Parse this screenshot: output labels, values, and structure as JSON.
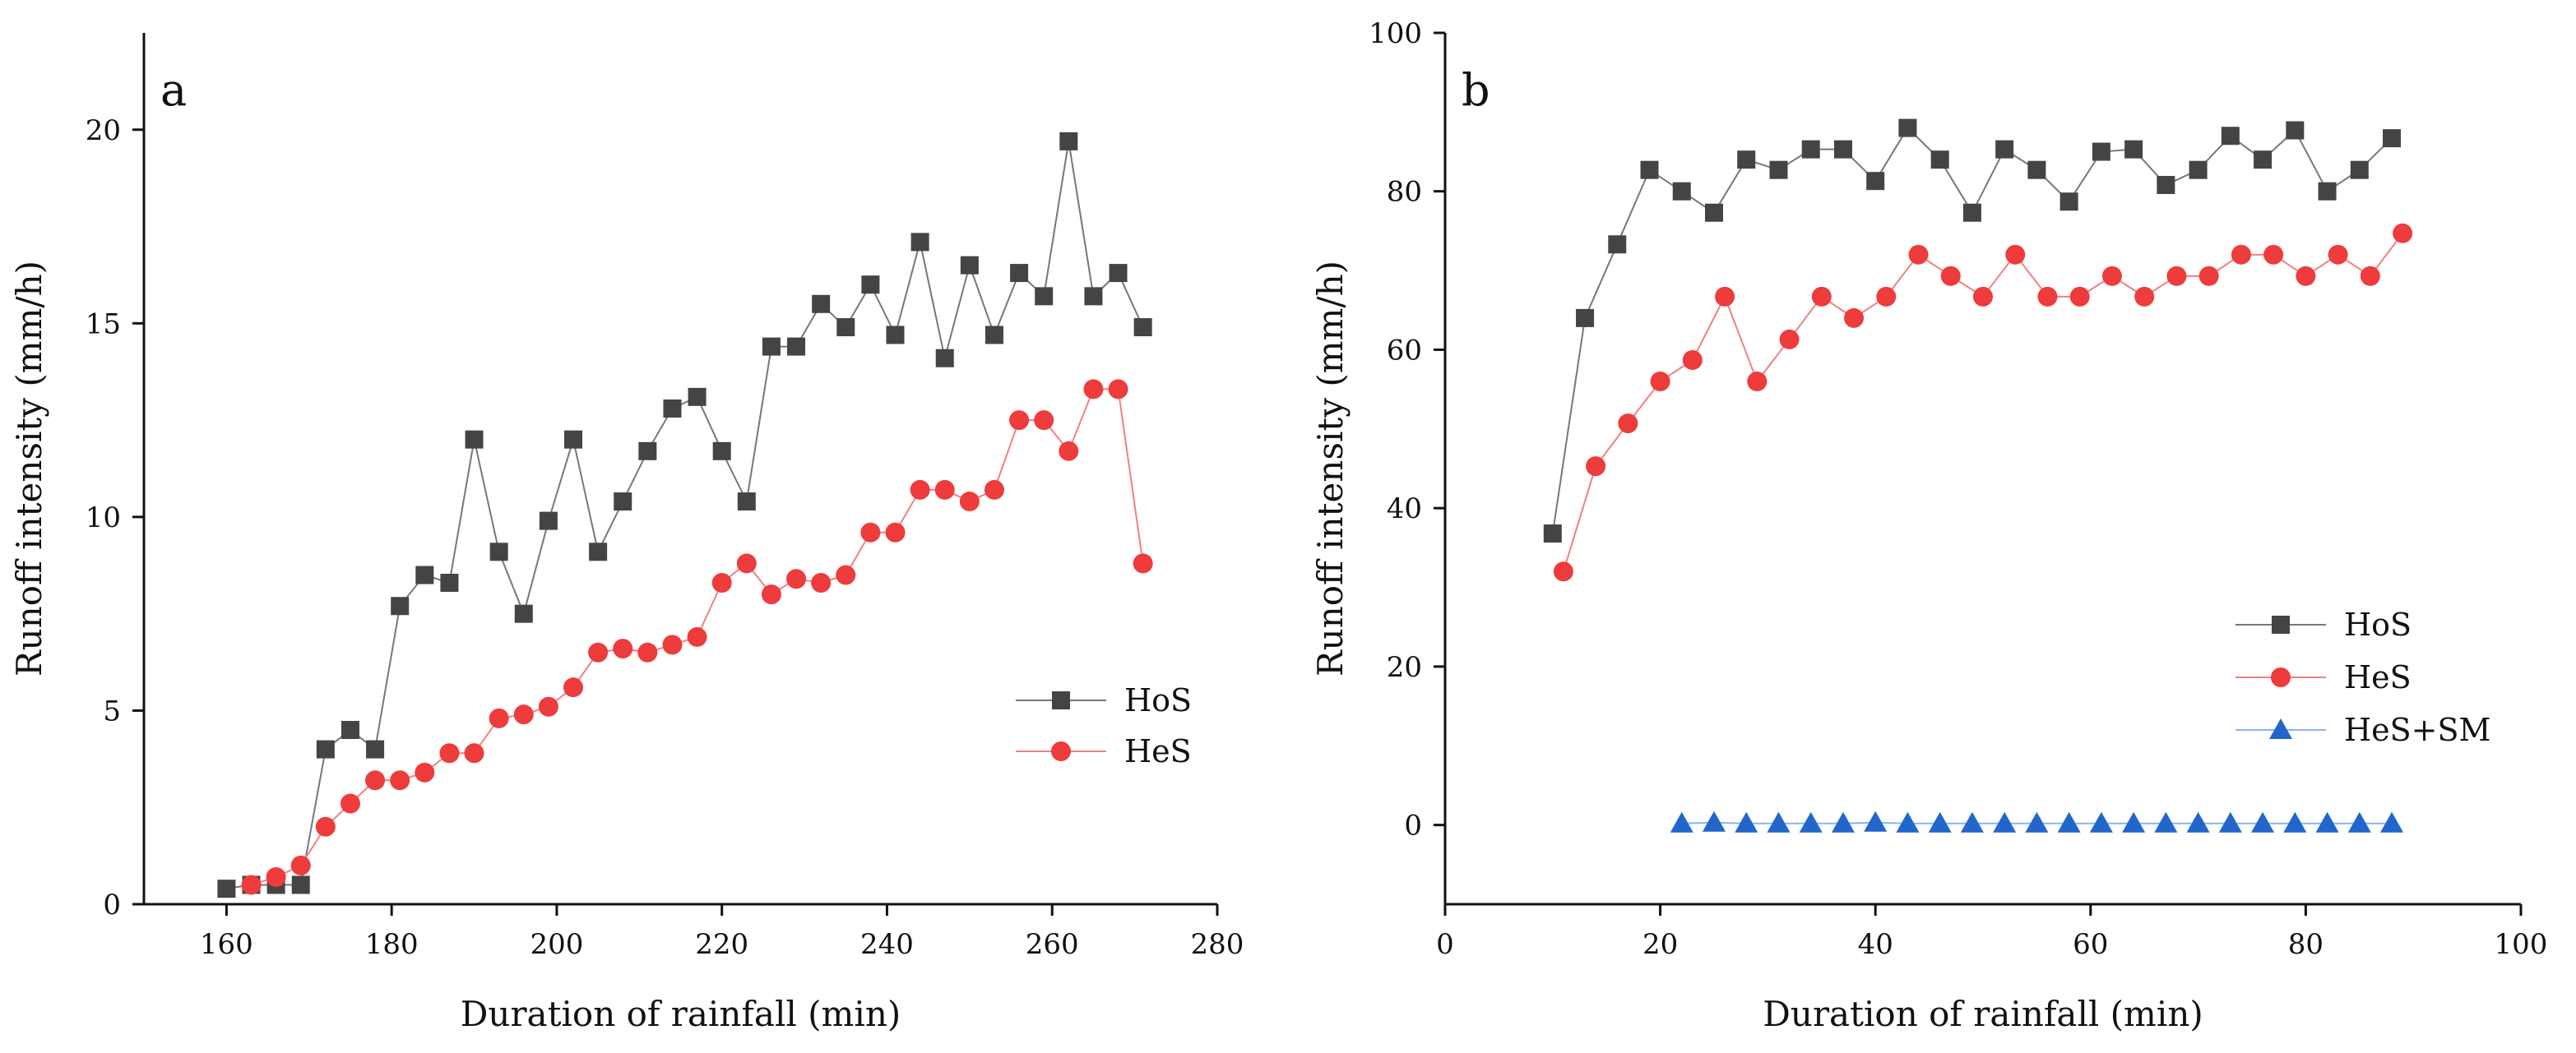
{
  "chart_data": [
    {
      "type": "line",
      "panel_label": "a",
      "xlabel": "Duration of rainfall (min)",
      "ylabel": "Runoff intensity (mm/h)",
      "xlim": [
        150,
        280
      ],
      "ylim": [
        0,
        22.5
      ],
      "xticks": [
        160,
        180,
        200,
        220,
        240,
        260,
        280
      ],
      "yticks": [
        0,
        5,
        10,
        15,
        20
      ],
      "legend_position": "lower-right",
      "series": [
        {
          "name": "HoS",
          "marker": "square",
          "color": "#444444",
          "line_color": "#777777",
          "x": [
            160,
            163,
            166,
            169,
            172,
            175,
            178,
            181,
            184,
            187,
            190,
            193,
            196,
            199,
            202,
            205,
            208,
            211,
            214,
            217,
            220,
            223,
            226,
            229,
            232,
            235,
            238,
            241,
            244,
            247,
            250,
            253,
            256,
            259,
            262,
            265,
            268,
            271
          ],
          "y": [
            0.4,
            0.5,
            0.5,
            0.5,
            4.0,
            4.5,
            4.0,
            7.7,
            8.5,
            8.3,
            12.0,
            9.1,
            7.5,
            9.9,
            12.0,
            9.1,
            10.4,
            11.7,
            12.8,
            13.1,
            11.7,
            10.4,
            14.4,
            14.4,
            15.5,
            14.9,
            16.0,
            14.7,
            17.1,
            14.1,
            16.5,
            14.7,
            16.3,
            15.7,
            19.7,
            15.7,
            16.3,
            14.9
          ]
        },
        {
          "name": "HeS",
          "marker": "circle",
          "color": "#ee3b3b",
          "line_color": "#f08080",
          "x": [
            163,
            166,
            169,
            172,
            175,
            178,
            181,
            184,
            187,
            190,
            193,
            196,
            199,
            202,
            205,
            208,
            211,
            214,
            217,
            220,
            223,
            226,
            229,
            232,
            235,
            238,
            241,
            244,
            247,
            250,
            253,
            256,
            259,
            262,
            265,
            268,
            271
          ],
          "y": [
            0.5,
            0.7,
            1.0,
            2.0,
            2.6,
            3.2,
            3.2,
            3.4,
            3.9,
            3.9,
            4.8,
            4.9,
            5.1,
            5.6,
            6.5,
            6.6,
            6.5,
            6.7,
            6.9,
            8.3,
            8.8,
            8.0,
            8.4,
            8.3,
            8.5,
            9.6,
            9.6,
            10.7,
            10.7,
            10.4,
            10.7,
            12.5,
            12.5,
            11.7,
            13.3,
            13.3,
            8.8
          ]
        }
      ]
    },
    {
      "type": "line",
      "panel_label": "b",
      "xlabel": "Duration of rainfall (min)",
      "ylabel": "Runoff intensity (mm/h)",
      "xlim": [
        0,
        100
      ],
      "ylim": [
        -10,
        100
      ],
      "xticks": [
        0,
        20,
        40,
        60,
        80,
        100
      ],
      "yticks": [
        0,
        20,
        40,
        60,
        80,
        100
      ],
      "legend_position": "lower-right",
      "series": [
        {
          "name": "HoS",
          "marker": "square",
          "color": "#444444",
          "line_color": "#777777",
          "x": [
            10,
            13,
            16,
            19,
            22,
            25,
            28,
            31,
            34,
            37,
            40,
            43,
            46,
            49,
            52,
            55,
            58,
            61,
            64,
            67,
            70,
            73,
            76,
            79,
            82,
            85,
            88
          ],
          "y": [
            36.8,
            64.0,
            73.3,
            82.7,
            80.0,
            77.3,
            84.0,
            82.7,
            85.3,
            85.3,
            81.3,
            88.0,
            84.0,
            77.3,
            85.3,
            82.7,
            78.7,
            85.0,
            85.3,
            80.8,
            82.7,
            87.0,
            84.0,
            87.7,
            80.0,
            82.7,
            86.7
          ]
        },
        {
          "name": "HeS",
          "marker": "circle",
          "color": "#ee3b3b",
          "line_color": "#f08080",
          "x": [
            11,
            14,
            17,
            20,
            23,
            26,
            29,
            32,
            35,
            38,
            41,
            44,
            47,
            50,
            53,
            56,
            59,
            62,
            65,
            68,
            71,
            74,
            77,
            80,
            83,
            86,
            89
          ],
          "y": [
            32.0,
            45.3,
            50.7,
            56.0,
            58.7,
            66.7,
            56.0,
            61.3,
            66.7,
            64.0,
            66.7,
            72.0,
            69.3,
            66.7,
            72.0,
            66.7,
            66.7,
            69.3,
            66.7,
            69.3,
            69.3,
            72.0,
            72.0,
            69.3,
            72.0,
            69.3,
            74.7
          ]
        },
        {
          "name": "HeS+SM",
          "marker": "triangle",
          "color": "#2266cc",
          "line_color": "#8ab4f0",
          "x": [
            22,
            25,
            28,
            31,
            34,
            37,
            40,
            43,
            46,
            49,
            52,
            55,
            58,
            61,
            64,
            67,
            70,
            73,
            76,
            79,
            82,
            85,
            88
          ],
          "y": [
            0.2,
            0.3,
            0.2,
            0.2,
            0.2,
            0.2,
            0.3,
            0.2,
            0.2,
            0.2,
            0.2,
            0.2,
            0.2,
            0.2,
            0.2,
            0.2,
            0.2,
            0.2,
            0.2,
            0.2,
            0.2,
            0.2,
            0.2
          ]
        }
      ]
    }
  ]
}
